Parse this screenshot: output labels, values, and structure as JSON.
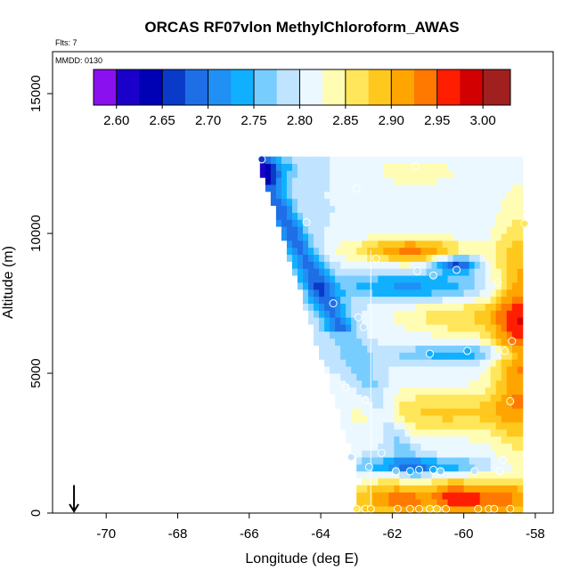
{
  "chart_data": {
    "type": "heatmap",
    "title": "ORCAS RF07vlon MethylChloroform_AWAS",
    "annotations": {
      "flts": "Flts: 7",
      "mmdd": "MMDD: 0130"
    },
    "xlabel": "Longitude (deg E)",
    "ylabel": "Altitude (m)",
    "xlim": [
      -71.5,
      -57.5
    ],
    "ylim": [
      0,
      16500
    ],
    "x_ticks": [
      -70,
      -68,
      -66,
      -64,
      -62,
      -60,
      -58
    ],
    "x_tick_labels": [
      "-70",
      "-68",
      "-66",
      "-64",
      "-62",
      "-60",
      "-58"
    ],
    "y_ticks": [
      0,
      5000,
      10000,
      15000
    ],
    "y_tick_labels": [
      "0",
      "5000",
      "10000",
      "15000"
    ],
    "colorbar": {
      "ticks": [
        2.6,
        2.65,
        2.7,
        2.75,
        2.8,
        2.85,
        2.9,
        2.95,
        3.0
      ],
      "tick_labels": [
        "2.60",
        "2.65",
        "2.70",
        "2.75",
        "2.80",
        "2.85",
        "2.90",
        "2.95",
        "3.00"
      ],
      "range": [
        2.575,
        3.03
      ],
      "bands": [
        {
          "lo": 2.575,
          "hi": 2.6,
          "color": "#8b10ef"
        },
        {
          "lo": 2.6,
          "hi": 2.625,
          "color": "#1a00c8"
        },
        {
          "lo": 2.625,
          "hi": 2.65,
          "color": "#0000b4"
        },
        {
          "lo": 2.65,
          "hi": 2.675,
          "color": "#0a3ac8"
        },
        {
          "lo": 2.675,
          "hi": 2.7,
          "color": "#1e6ee6"
        },
        {
          "lo": 2.7,
          "hi": 2.725,
          "color": "#2090f4"
        },
        {
          "lo": 2.725,
          "hi": 2.75,
          "color": "#10b0ff"
        },
        {
          "lo": 2.75,
          "hi": 2.775,
          "color": "#78cdff"
        },
        {
          "lo": 2.775,
          "hi": 2.8,
          "color": "#c0e4ff"
        },
        {
          "lo": 2.8,
          "hi": 2.825,
          "color": "#ecf8ff"
        },
        {
          "lo": 2.825,
          "hi": 2.85,
          "color": "#fffcb4"
        },
        {
          "lo": 2.85,
          "hi": 2.875,
          "color": "#ffe65a"
        },
        {
          "lo": 2.875,
          "hi": 2.9,
          "color": "#ffc81e"
        },
        {
          "lo": 2.9,
          "hi": 2.925,
          "color": "#ffa500"
        },
        {
          "lo": 2.925,
          "hi": 2.95,
          "color": "#ff7800"
        },
        {
          "lo": 2.95,
          "hi": 2.975,
          "color": "#ff1e00"
        },
        {
          "lo": 2.975,
          "hi": 3.0,
          "color": "#d20000"
        },
        {
          "lo": 3.0,
          "hi": 3.03,
          "color": "#a02020"
        }
      ]
    },
    "grid": false,
    "arrow_marker": {
      "x": -70.9,
      "direction": "down"
    },
    "vertical_line": {
      "x": -62.6,
      "ymax": 9400
    },
    "samples": [
      {
        "x": -65.65,
        "y": 12650
      },
      {
        "x": -61.35,
        "y": 12400
      },
      {
        "x": -63.0,
        "y": 11600
      },
      {
        "x": -64.4,
        "y": 10400
      },
      {
        "x": -58.3,
        "y": 10350
      },
      {
        "x": -62.45,
        "y": 9100
      },
      {
        "x": -60.2,
        "y": 8700
      },
      {
        "x": -60.85,
        "y": 8500
      },
      {
        "x": -59.05,
        "y": 8250
      },
      {
        "x": -63.65,
        "y": 7500
      },
      {
        "x": -62.95,
        "y": 7000
      },
      {
        "x": -62.8,
        "y": 6650
      },
      {
        "x": -58.65,
        "y": 6150
      },
      {
        "x": -60.95,
        "y": 5700
      },
      {
        "x": -58.85,
        "y": 5800
      },
      {
        "x": -63.3,
        "y": 4500
      },
      {
        "x": -62.75,
        "y": 4050
      },
      {
        "x": -58.7,
        "y": 4000
      },
      {
        "x": -63.15,
        "y": 2000
      },
      {
        "x": -62.3,
        "y": 2150
      },
      {
        "x": -58.9,
        "y": 1900
      },
      {
        "x": -62.65,
        "y": 1650
      },
      {
        "x": -61.9,
        "y": 1500
      },
      {
        "x": -61.5,
        "y": 1500
      },
      {
        "x": -60.85,
        "y": 1550
      },
      {
        "x": -60.65,
        "y": 1500
      },
      {
        "x": -59.7,
        "y": 1500
      },
      {
        "x": -59.0,
        "y": 1500
      },
      {
        "x": -63.0,
        "y": 150
      },
      {
        "x": -62.75,
        "y": 150
      },
      {
        "x": -62.6,
        "y": 150
      },
      {
        "x": -61.85,
        "y": 150
      },
      {
        "x": -61.5,
        "y": 150
      },
      {
        "x": -61.25,
        "y": 150
      },
      {
        "x": -60.95,
        "y": 150
      },
      {
        "x": -60.75,
        "y": 150
      },
      {
        "x": -60.5,
        "y": 150
      },
      {
        "x": -59.6,
        "y": 150
      },
      {
        "x": -59.3,
        "y": 150
      },
      {
        "x": -59.15,
        "y": 150
      },
      {
        "x": -58.7,
        "y": 150
      },
      {
        "x": -61.25,
        "y": 1550
      },
      {
        "x": -59.9,
        "y": 5800
      },
      {
        "x": -61.3,
        "y": 8650
      }
    ]
  }
}
